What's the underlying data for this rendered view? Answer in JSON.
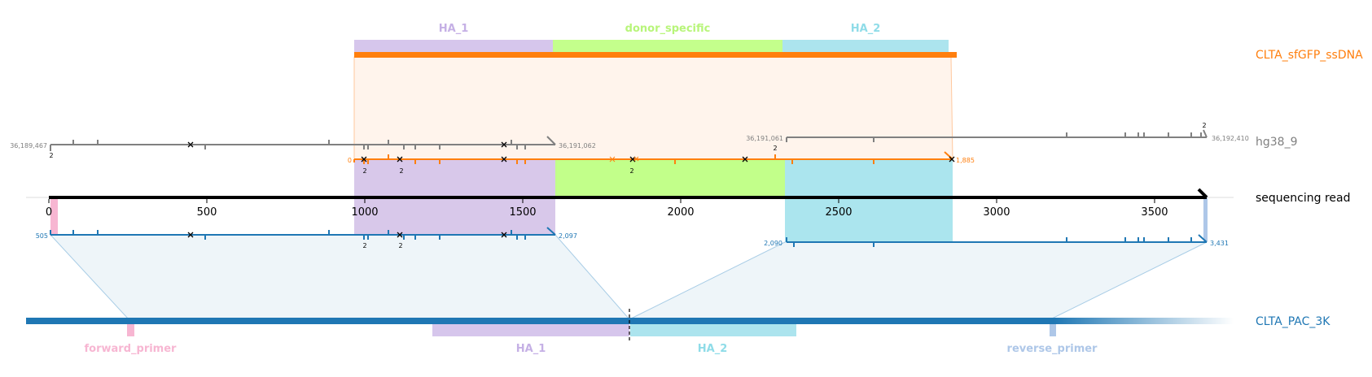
{
  "colors": {
    "orange": "#ff7f0e",
    "blue": "#1f77b4",
    "gray": "#808080",
    "black": "#000000",
    "ha1": "#c5b0e5",
    "donor": "#b8ff73",
    "ha2": "#8fdce8",
    "forward_primer": "#f7b6d2",
    "reverse_primer": "#aec7e8",
    "orange_fill": "#fff3ea",
    "blue_fill": "#eef5f9"
  },
  "tracks": {
    "donor": "CLTA_sfGFP_ssDNA",
    "genome": "hg38_9",
    "read": "sequencing read",
    "amplicon": "CLTA_PAC_3K"
  },
  "top_features": [
    {
      "label": "HA_1",
      "color": "#c5b0e5",
      "start": 970,
      "end": 1600
    },
    {
      "label": "donor_specific",
      "color": "#b8ff73",
      "start": 1600,
      "end": 2330
    },
    {
      "label": "HA_2",
      "color": "#8fdce8",
      "start": 2330,
      "end": 2855
    }
  ],
  "bottom_features": [
    {
      "label": "forward_primer",
      "color": "#f7b6d2"
    },
    {
      "label": "HA_1",
      "color": "#c5b0e5"
    },
    {
      "label": "HA_2",
      "color": "#8fdce8"
    },
    {
      "label": "reverse_primer",
      "color": "#aec7e8"
    }
  ],
  "read_axis": {
    "min": 0,
    "max": 3665,
    "ticks": [
      "0",
      "500",
      "1000",
      "1500",
      "2000",
      "2500",
      "3000",
      "3500"
    ]
  },
  "alignment_labels": {
    "genome_left_start": "36,189,467",
    "genome_left_end": "36,191,062",
    "genome_right_start": "36,191,061",
    "genome_right_end": "36,192,410",
    "donor_start": "0",
    "donor_end": "1,885",
    "amplicon_left_start": "505",
    "amplicon_left_end": "2,097",
    "amplicon_right_start": "2,090",
    "amplicon_right_end": "3,431",
    "insertion_count": "2"
  }
}
